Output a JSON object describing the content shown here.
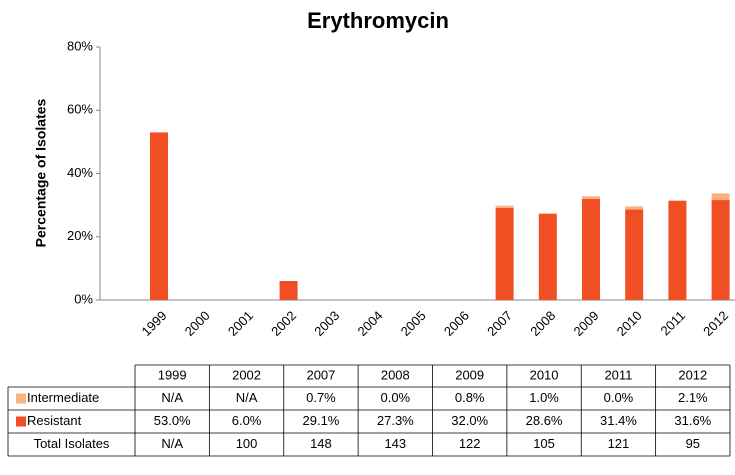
{
  "chart_data": {
    "type": "stacked_bar",
    "title": "Erythromycin",
    "y_label": "Percentage of Isolates",
    "categories": [
      "1999",
      "2000",
      "2001",
      "2002",
      "2003",
      "2004",
      "2005",
      "2006",
      "2007",
      "2008",
      "2009",
      "2010",
      "2011",
      "2012"
    ],
    "ylim": [
      0,
      80
    ],
    "yticks": [
      {
        "value": 0,
        "label": "0%"
      },
      {
        "value": 20,
        "label": "20%"
      },
      {
        "value": 40,
        "label": "40%"
      },
      {
        "value": 60,
        "label": "60%"
      },
      {
        "value": 80,
        "label": "80%"
      }
    ],
    "series": [
      {
        "name": "Intermediate",
        "color": "#f9b27e",
        "values": [
          null,
          null,
          null,
          null,
          null,
          null,
          null,
          null,
          0.7,
          0.0,
          0.8,
          1.0,
          0.0,
          2.1
        ],
        "value_labels": [
          "N/A",
          null,
          null,
          "N/A",
          null,
          null,
          null,
          null,
          "0.7%",
          "0.0%",
          "0.8%",
          "1.0%",
          "0.0%",
          "2.1%"
        ]
      },
      {
        "name": "Resistant",
        "color": "#f04e23",
        "values": [
          53.0,
          null,
          null,
          6.0,
          null,
          null,
          null,
          null,
          29.1,
          27.3,
          32.0,
          28.6,
          31.4,
          31.6
        ],
        "value_labels": [
          "53.0%",
          null,
          null,
          "6.0%",
          null,
          null,
          null,
          null,
          "29.1%",
          "27.3%",
          "32.0%",
          "28.6%",
          "31.4%",
          "31.6%"
        ]
      }
    ],
    "total_isolates": {
      "name": "Total Isolates",
      "labels": [
        "N/A",
        null,
        null,
        "100",
        null,
        null,
        null,
        null,
        "148",
        "143",
        "122",
        "105",
        "121",
        "95"
      ]
    }
  }
}
